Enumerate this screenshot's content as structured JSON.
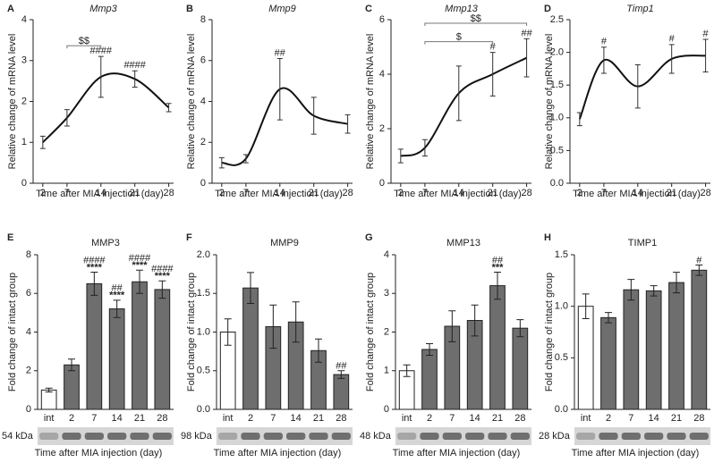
{
  "chart_data": [
    {
      "type": "line",
      "panel": "A",
      "title": "Mmp3",
      "title_italic": true,
      "x_label": "Time after MIA injection (day)",
      "y_label": "Relative change of mRNA level",
      "x": [
        2,
        7,
        14,
        21,
        28
      ],
      "xlim": [
        0,
        29
      ],
      "xticks": [
        2,
        7,
        14,
        21,
        28
      ],
      "ylim": [
        0,
        4
      ],
      "yticks": [
        0,
        1,
        2,
        3,
        4
      ],
      "color": "#111111",
      "values": [
        1.0,
        1.6,
        2.6,
        2.55,
        1.85
      ],
      "errors": [
        0.15,
        0.2,
        0.5,
        0.2,
        0.1
      ],
      "significance": [
        null,
        null,
        "####",
        "####",
        null
      ],
      "brackets": [
        {
          "from": 7,
          "to": 14,
          "text": "$$"
        }
      ]
    },
    {
      "type": "line",
      "panel": "B",
      "title": "Mmp9",
      "title_italic": true,
      "x_label": "Time after MIA injection (day)",
      "y_label": "Relative change of mRNA level",
      "x": [
        2,
        7,
        14,
        21,
        28
      ],
      "xlim": [
        0,
        29
      ],
      "xticks": [
        2,
        7,
        14,
        21,
        28
      ],
      "ylim": [
        0,
        8
      ],
      "yticks": [
        0,
        2,
        4,
        6,
        8
      ],
      "color": "#111111",
      "values": [
        1.0,
        1.2,
        4.6,
        3.3,
        2.9
      ],
      "errors": [
        0.25,
        0.2,
        1.5,
        0.9,
        0.45
      ],
      "significance": [
        null,
        null,
        "##",
        null,
        null
      ],
      "brackets": []
    },
    {
      "type": "line",
      "panel": "C",
      "title": "Mmp13",
      "title_italic": true,
      "x_label": "Time after MIA injection (day)",
      "y_label": "Relative change of mRNA level",
      "x": [
        2,
        7,
        14,
        21,
        28
      ],
      "xlim": [
        0,
        29
      ],
      "xticks": [
        2,
        7,
        14,
        21,
        28
      ],
      "ylim": [
        0,
        6
      ],
      "yticks": [
        0,
        2,
        4,
        6
      ],
      "color": "#111111",
      "values": [
        1.0,
        1.3,
        3.3,
        4.0,
        4.6
      ],
      "errors": [
        0.25,
        0.3,
        1.0,
        0.8,
        0.7
      ],
      "significance": [
        null,
        null,
        null,
        "#",
        "##"
      ],
      "brackets": [
        {
          "from": 7,
          "to": 21,
          "text": "$"
        },
        {
          "from": 7,
          "to": 28,
          "text": "$$"
        }
      ]
    },
    {
      "type": "line",
      "panel": "D",
      "title": "Timp1",
      "title_italic": true,
      "x_label": "Time after MIA injection (day)",
      "y_label": "Relative change of mRNA level",
      "x": [
        2,
        7,
        14,
        21,
        28
      ],
      "xlim": [
        0,
        29
      ],
      "xticks": [
        2,
        7,
        14,
        21,
        28
      ],
      "ylim": [
        0,
        2.5
      ],
      "yticks": [
        {
          "value": 0,
          "label": "0.0"
        },
        0.5,
        {
          "value": 1,
          "label": "1.0"
        },
        1.5,
        {
          "value": 2,
          "label": "2.0"
        },
        2.5
      ],
      "color": "#111111",
      "values": [
        0.98,
        1.88,
        1.48,
        1.9,
        1.95
      ],
      "errors": [
        0.1,
        0.2,
        0.33,
        0.22,
        0.25
      ],
      "significance": [
        null,
        "#",
        null,
        "#",
        "#"
      ],
      "brackets": []
    },
    {
      "type": "bar",
      "panel": "E",
      "title": "MMP3",
      "x_label": "Time after MIA injection (day)",
      "y_label": "Fold change of intact group",
      "blot_label": "54 kDa",
      "categories": [
        "int",
        "2",
        "7",
        "14",
        "21",
        "28"
      ],
      "ylim": [
        0,
        8
      ],
      "yticks": [
        0,
        2,
        4,
        6,
        8
      ],
      "colors": [
        "#ffffff",
        "#6e6e6e",
        "#6e6e6e",
        "#6e6e6e",
        "#6e6e6e",
        "#6e6e6e"
      ],
      "values": [
        1.0,
        2.3,
        6.5,
        5.2,
        6.6,
        6.2
      ],
      "errors": [
        0.1,
        0.3,
        0.6,
        0.45,
        0.6,
        0.45
      ],
      "significance": [
        null,
        null,
        [
          "####",
          "****"
        ],
        [
          "##",
          "****"
        ],
        [
          "####",
          "****"
        ],
        [
          "####",
          "****"
        ]
      ]
    },
    {
      "type": "bar",
      "panel": "F",
      "title": "MMP9",
      "x_label": "Time after MIA injection (day)",
      "y_label": "Fold change of intact group",
      "blot_label": "98 kDa",
      "categories": [
        "int",
        "2",
        "7",
        "14",
        "21",
        "28"
      ],
      "ylim": [
        0,
        2
      ],
      "yticks": [
        {
          "value": 0,
          "label": "0.0"
        },
        0.5,
        {
          "value": 1,
          "label": "1.0"
        },
        1.5,
        {
          "value": 2,
          "label": "2.0"
        }
      ],
      "colors": [
        "#ffffff",
        "#6e6e6e",
        "#6e6e6e",
        "#6e6e6e",
        "#6e6e6e",
        "#6e6e6e"
      ],
      "values": [
        1.0,
        1.57,
        1.07,
        1.13,
        0.76,
        0.45
      ],
      "errors": [
        0.17,
        0.2,
        0.28,
        0.26,
        0.15,
        0.05
      ],
      "significance": [
        null,
        null,
        null,
        null,
        null,
        [
          "##"
        ]
      ]
    },
    {
      "type": "bar",
      "panel": "G",
      "title": "MMP13",
      "x_label": "Time after MIA injection (day)",
      "y_label": "Fold change of intact group",
      "blot_label": "48 kDa",
      "categories": [
        "int",
        "2",
        "7",
        "14",
        "21",
        "28"
      ],
      "ylim": [
        0,
        4
      ],
      "yticks": [
        0,
        1,
        2,
        3,
        4
      ],
      "colors": [
        "#ffffff",
        "#6e6e6e",
        "#6e6e6e",
        "#6e6e6e",
        "#6e6e6e",
        "#6e6e6e"
      ],
      "values": [
        1.0,
        1.55,
        2.15,
        2.3,
        3.2,
        2.1
      ],
      "errors": [
        0.15,
        0.15,
        0.4,
        0.4,
        0.35,
        0.22
      ],
      "significance": [
        null,
        null,
        null,
        null,
        [
          "##",
          "***"
        ],
        null
      ]
    },
    {
      "type": "bar",
      "panel": "H",
      "title": "TIMP1",
      "x_label": "Time after MIA injection (day)",
      "y_label": "Fold change of intact group",
      "blot_label": "28 kDa",
      "categories": [
        "int",
        "2",
        "7",
        "14",
        "21",
        "28"
      ],
      "ylim": [
        0,
        1.5
      ],
      "yticks": [
        {
          "value": 0,
          "label": "0.0"
        },
        0.5,
        {
          "value": 1,
          "label": "1.0"
        },
        1.5
      ],
      "colors": [
        "#ffffff",
        "#6e6e6e",
        "#6e6e6e",
        "#6e6e6e",
        "#6e6e6e",
        "#6e6e6e"
      ],
      "values": [
        1.0,
        0.89,
        1.16,
        1.15,
        1.23,
        1.35
      ],
      "errors": [
        0.12,
        0.05,
        0.1,
        0.05,
        0.1,
        0.05
      ],
      "significance": [
        null,
        null,
        null,
        null,
        null,
        [
          "#"
        ]
      ]
    }
  ]
}
